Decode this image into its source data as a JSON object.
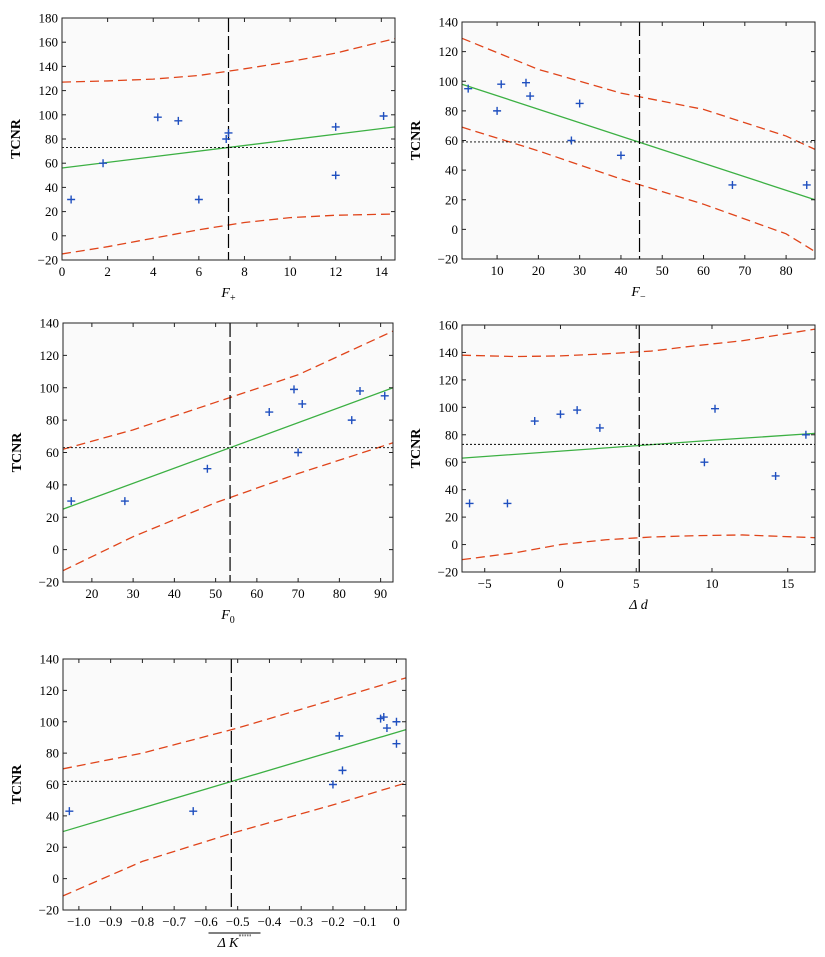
{
  "colors": {
    "points": "#1f4fbf",
    "fit": "#3cb043",
    "bounds": "#e0441a",
    "mean": "#000000",
    "cursor": "#000000",
    "frame": "#222222"
  },
  "chart_data": [
    {
      "type": "scatter",
      "ylabel": "TCNR",
      "xlabel_main": "F",
      "xlabel_sub": "+",
      "xlim": [
        0,
        14.6
      ],
      "ylim": [
        -20,
        180
      ],
      "xticks": [
        0,
        2,
        4,
        6,
        8,
        10,
        12,
        14
      ],
      "xtick_labels": [
        "0",
        "2",
        "4",
        "6",
        "8",
        "10",
        "12",
        "14"
      ],
      "yticks": [
        -20,
        0,
        20,
        40,
        60,
        80,
        100,
        120,
        140,
        160,
        180
      ],
      "points": [
        [
          0.4,
          30
        ],
        [
          1.8,
          60
        ],
        [
          4.2,
          98
        ],
        [
          5.1,
          95
        ],
        [
          6.0,
          30
        ],
        [
          7.2,
          80
        ],
        [
          7.3,
          85
        ],
        [
          12.0,
          90
        ],
        [
          12.0,
          50
        ],
        [
          14.1,
          99
        ]
      ],
      "fit": [
        [
          0,
          56
        ],
        [
          14.6,
          90
        ]
      ],
      "upper_bound": [
        [
          0,
          127
        ],
        [
          2,
          128
        ],
        [
          4,
          129.5
        ],
        [
          6,
          132.5
        ],
        [
          8,
          138
        ],
        [
          10,
          144
        ],
        [
          12,
          151
        ],
        [
          14.6,
          163
        ]
      ],
      "lower_bound": [
        [
          0,
          -15
        ],
        [
          2,
          -9
        ],
        [
          4,
          -2
        ],
        [
          6,
          5
        ],
        [
          8,
          11
        ],
        [
          10,
          15
        ],
        [
          12,
          17
        ],
        [
          14.6,
          18
        ]
      ],
      "mean_y": 73,
      "cursor_x": 7.3
    },
    {
      "type": "scatter",
      "ylabel": "TCNR",
      "xlabel_main": "F",
      "xlabel_sub": "−",
      "xlim": [
        1.5,
        87
      ],
      "ylim": [
        -20,
        140
      ],
      "xticks": [
        10,
        20,
        30,
        40,
        50,
        60,
        70,
        80
      ],
      "xtick_labels": [
        "10",
        "20",
        "30",
        "40",
        "50",
        "60",
        "70",
        "80"
      ],
      "yticks": [
        -20,
        0,
        20,
        40,
        60,
        80,
        100,
        120,
        140
      ],
      "points": [
        [
          3,
          95
        ],
        [
          10,
          80
        ],
        [
          11,
          98
        ],
        [
          17,
          99
        ],
        [
          18,
          90
        ],
        [
          28,
          60
        ],
        [
          30,
          85
        ],
        [
          40,
          50
        ],
        [
          67,
          30
        ],
        [
          85,
          30
        ]
      ],
      "fit": [
        [
          1.5,
          98
        ],
        [
          87,
          20
        ]
      ],
      "upper_bound": [
        [
          1.5,
          129
        ],
        [
          20,
          108
        ],
        [
          40,
          92
        ],
        [
          60,
          81
        ],
        [
          80,
          63
        ],
        [
          87,
          54
        ]
      ],
      "lower_bound": [
        [
          1.5,
          69
        ],
        [
          20,
          53
        ],
        [
          40,
          34
        ],
        [
          60,
          17
        ],
        [
          80,
          -3
        ],
        [
          87,
          -15
        ]
      ],
      "mean_y": 59,
      "cursor_x": 44.5
    },
    {
      "type": "scatter",
      "ylabel": "TCNR",
      "xlabel_main": "F",
      "xlabel_sub": "0",
      "xlim": [
        13,
        93
      ],
      "ylim": [
        -20,
        140
      ],
      "xticks": [
        20,
        30,
        40,
        50,
        60,
        70,
        80,
        90
      ],
      "xtick_labels": [
        "20",
        "30",
        "40",
        "50",
        "60",
        "70",
        "80",
        "90"
      ],
      "yticks": [
        -20,
        0,
        20,
        40,
        60,
        80,
        100,
        120,
        140
      ],
      "points": [
        [
          15,
          30
        ],
        [
          28,
          30
        ],
        [
          48,
          50
        ],
        [
          63,
          85
        ],
        [
          69,
          99
        ],
        [
          70,
          60
        ],
        [
          71,
          90
        ],
        [
          83,
          80
        ],
        [
          85,
          98
        ],
        [
          91,
          95
        ]
      ],
      "fit": [
        [
          13,
          25
        ],
        [
          93,
          100
        ]
      ],
      "upper_bound": [
        [
          13,
          62
        ],
        [
          30,
          74
        ],
        [
          50,
          91
        ],
        [
          70,
          108
        ],
        [
          93,
          135
        ]
      ],
      "lower_bound": [
        [
          13,
          -13
        ],
        [
          30,
          8
        ],
        [
          50,
          29
        ],
        [
          70,
          47
        ],
        [
          93,
          66
        ]
      ],
      "mean_y": 63,
      "cursor_x": 53.5
    },
    {
      "type": "scatter",
      "ylabel": "TCNR",
      "xlabel_main": "Δ d",
      "xlabel_sub": "",
      "xlim": [
        -6.5,
        16.8
      ],
      "ylim": [
        -20,
        160
      ],
      "xticks": [
        -5,
        0,
        5,
        10,
        15
      ],
      "xtick_labels": [
        "−5",
        "0",
        "5",
        "10",
        "15"
      ],
      "yticks": [
        -20,
        0,
        20,
        40,
        60,
        80,
        100,
        120,
        140,
        160
      ],
      "points": [
        [
          -6,
          30
        ],
        [
          -3.5,
          30
        ],
        [
          -1.7,
          90
        ],
        [
          0,
          95
        ],
        [
          1.1,
          98
        ],
        [
          2.6,
          85
        ],
        [
          9.5,
          60
        ],
        [
          10.2,
          99
        ],
        [
          14.2,
          50
        ],
        [
          16.2,
          80
        ]
      ],
      "fit": [
        [
          -6.5,
          63
        ],
        [
          5,
          72
        ],
        [
          10,
          76
        ],
        [
          16.8,
          81
        ]
      ],
      "upper_bound": [
        [
          -6.5,
          138
        ],
        [
          -3,
          137
        ],
        [
          0,
          137.5
        ],
        [
          3,
          139
        ],
        [
          6,
          141
        ],
        [
          9,
          145
        ],
        [
          12,
          148.5
        ],
        [
          16.8,
          157
        ]
      ],
      "lower_bound": [
        [
          -6.5,
          -11
        ],
        [
          -3,
          -6
        ],
        [
          0,
          0
        ],
        [
          3,
          3.5
        ],
        [
          6,
          5.5
        ],
        [
          9,
          6.5
        ],
        [
          12,
          7
        ],
        [
          16.8,
          5
        ]
      ],
      "mean_y": 73,
      "cursor_x": 5.2
    },
    {
      "type": "scatter",
      "ylabel": "TCNR",
      "xlabel_main": "Δ K",
      "xlabel_sub": "",
      "xlabel_sup": "\"\"\"\"",
      "xlabel_overline": true,
      "xlim": [
        -1.05,
        0.03
      ],
      "ylim": [
        -20,
        140
      ],
      "xticks": [
        -1.0,
        -0.9,
        -0.8,
        -0.7,
        -0.6,
        -0.5,
        -0.4,
        -0.3,
        -0.2,
        -0.1,
        0
      ],
      "xtick_labels": [
        "−1.0",
        "−0.9",
        "−0.8",
        "−0.7",
        "−0.6",
        "−0.5",
        "−0.4",
        "−0.3",
        "−0.2",
        "−0.1",
        "0"
      ],
      "yticks": [
        -20,
        0,
        20,
        40,
        60,
        80,
        100,
        120,
        140
      ],
      "points": [
        [
          -1.03,
          43
        ],
        [
          -0.64,
          43
        ],
        [
          -0.2,
          60
        ],
        [
          -0.18,
          91
        ],
        [
          -0.17,
          69
        ],
        [
          -0.05,
          102
        ],
        [
          -0.04,
          103
        ],
        [
          -0.03,
          96
        ],
        [
          0,
          100
        ],
        [
          0,
          86
        ]
      ],
      "fit": [
        [
          -1.05,
          30
        ],
        [
          0.03,
          95
        ]
      ],
      "upper_bound": [
        [
          -1.05,
          70
        ],
        [
          -0.8,
          80
        ],
        [
          -0.5,
          96
        ],
        [
          -0.2,
          114
        ],
        [
          0.03,
          128
        ]
      ],
      "lower_bound": [
        [
          -1.05,
          -11
        ],
        [
          -0.8,
          11
        ],
        [
          -0.5,
          30
        ],
        [
          -0.2,
          47
        ],
        [
          0.03,
          61
        ]
      ],
      "mean_y": 62,
      "cursor_x": -0.52
    }
  ]
}
